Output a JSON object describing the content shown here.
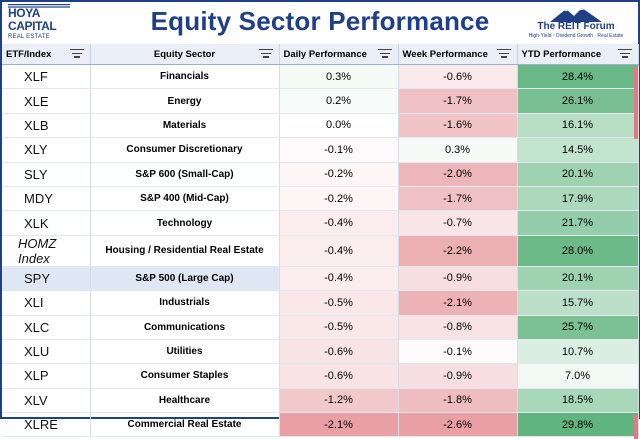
{
  "title": "Equity Sector Performance",
  "logo_left": {
    "line1": "HOYA CAPITAL",
    "line2": "REAL ESTATE"
  },
  "logo_right": {
    "name": "The REIT Forum",
    "tagline": "High-Yield · Dividend Growth · Real Estate"
  },
  "headers": [
    "ETF/Index",
    "Equity Sector",
    "Daily Performance",
    "Week Performance",
    "YTD Performance"
  ],
  "rows": [
    {
      "ticker": "XLF",
      "sector": "Financials",
      "daily": "0.3%",
      "week": "-0.6%",
      "ytd": "28.4%",
      "daily_v": 0.3,
      "week_v": -0.6,
      "ytd_v": 28.4
    },
    {
      "ticker": "XLE",
      "sector": "Energy",
      "daily": "0.2%",
      "week": "-1.7%",
      "ytd": "26.1%",
      "daily_v": 0.2,
      "week_v": -1.7,
      "ytd_v": 26.1
    },
    {
      "ticker": "XLB",
      "sector": "Materials",
      "daily": "0.0%",
      "week": "-1.6%",
      "ytd": "16.1%",
      "daily_v": 0.0,
      "week_v": -1.6,
      "ytd_v": 16.1
    },
    {
      "ticker": "XLY",
      "sector": "Consumer Discretionary",
      "daily": "-0.1%",
      "week": "0.3%",
      "ytd": "14.5%",
      "daily_v": -0.1,
      "week_v": 0.3,
      "ytd_v": 14.5
    },
    {
      "ticker": "SLY",
      "sector": "S&P 600 (Small-Cap)",
      "daily": "-0.2%",
      "week": "-2.0%",
      "ytd": "20.1%",
      "daily_v": -0.2,
      "week_v": -2.0,
      "ytd_v": 20.1
    },
    {
      "ticker": "MDY",
      "sector": "S&P 400 (Mid-Cap)",
      "daily": "-0.2%",
      "week": "-1.7%",
      "ytd": "17.9%",
      "daily_v": -0.2,
      "week_v": -1.7,
      "ytd_v": 17.9
    },
    {
      "ticker": "XLK",
      "sector": "Technology",
      "daily": "-0.4%",
      "week": "-0.7%",
      "ytd": "21.7%",
      "daily_v": -0.4,
      "week_v": -0.7,
      "ytd_v": 21.7
    },
    {
      "ticker": "HOMZ Index",
      "sector": "Housing / Residential Real Estate",
      "daily": "-0.4%",
      "week": "-2.2%",
      "ytd": "28.0%",
      "daily_v": -0.4,
      "week_v": -2.2,
      "ytd_v": 28.0,
      "italic": true
    },
    {
      "ticker": "SPY",
      "sector": "S&P 500 (Large Cap)",
      "daily": "-0.4%",
      "week": "-0.9%",
      "ytd": "20.1%",
      "daily_v": -0.4,
      "week_v": -0.9,
      "ytd_v": 20.1,
      "highlight": true
    },
    {
      "ticker": "XLI",
      "sector": "Industrials",
      "daily": "-0.5%",
      "week": "-2.1%",
      "ytd": "15.7%",
      "daily_v": -0.5,
      "week_v": -2.1,
      "ytd_v": 15.7
    },
    {
      "ticker": "XLC",
      "sector": "Communications",
      "daily": "-0.5%",
      "week": "-0.8%",
      "ytd": "25.7%",
      "daily_v": -0.5,
      "week_v": -0.8,
      "ytd_v": 25.7
    },
    {
      "ticker": "XLU",
      "sector": "Utilities",
      "daily": "-0.6%",
      "week": "-0.1%",
      "ytd": "10.7%",
      "daily_v": -0.6,
      "week_v": -0.1,
      "ytd_v": 10.7
    },
    {
      "ticker": "XLP",
      "sector": "Consumer Staples",
      "daily": "-0.6%",
      "week": "-0.9%",
      "ytd": "7.0%",
      "daily_v": -0.6,
      "week_v": -0.9,
      "ytd_v": 7.0
    },
    {
      "ticker": "XLV",
      "sector": "Healthcare",
      "daily": "-1.2%",
      "week": "-1.8%",
      "ytd": "18.5%",
      "daily_v": -1.2,
      "week_v": -1.8,
      "ytd_v": 18.5
    },
    {
      "ticker": "XLRE",
      "sector": "Commercial Real Estate",
      "daily": "-2.1%",
      "week": "-2.6%",
      "ytd": "29.8%",
      "daily_v": -2.1,
      "week_v": -2.6,
      "ytd_v": 29.8
    }
  ],
  "colors": {
    "brand": "#1f3f86",
    "negative": "#e8a0a4",
    "positive": "#5fb47e",
    "header_bg": "#e9eef7",
    "highlight": "#dfe7f4"
  },
  "icons": [
    "filter-icon",
    "mountain-logo-icon"
  ]
}
